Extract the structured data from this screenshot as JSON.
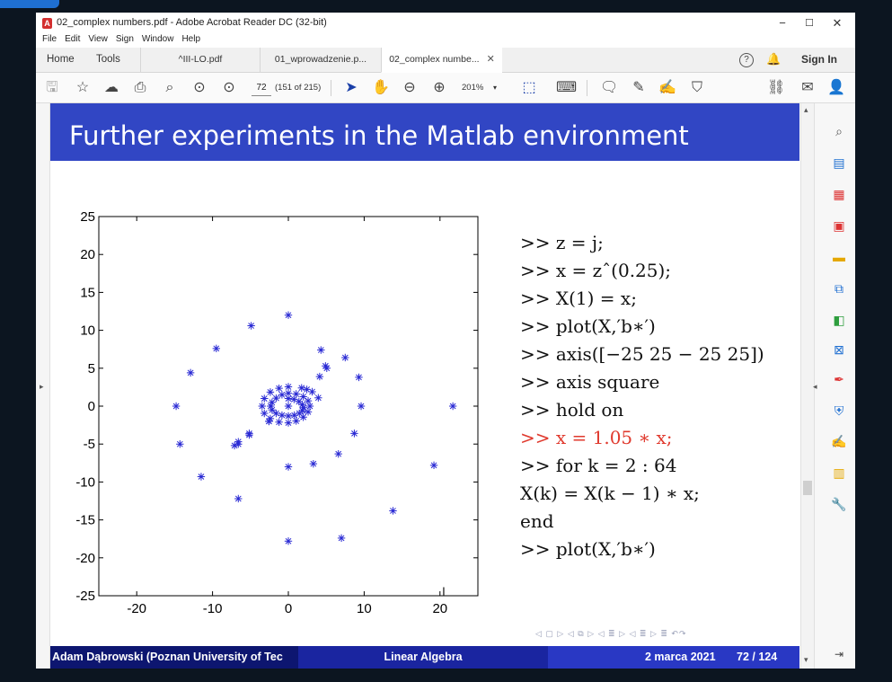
{
  "window": {
    "title": "02_complex numbers.pdf - Adobe Acrobat Reader DC (32-bit)",
    "minimize": "−",
    "maximize": "☐",
    "close": "✕"
  },
  "menu": [
    "File",
    "Edit",
    "View",
    "Sign",
    "Window",
    "Help"
  ],
  "tabs": {
    "home": "Home",
    "tools": "Tools",
    "docs": [
      {
        "label": "^III-LO.pdf",
        "active": false
      },
      {
        "label": "01_wprowadzenie.p...",
        "active": false
      },
      {
        "label": "02_complex numbe...",
        "active": true
      }
    ],
    "close_glyph": "✕",
    "help": "?",
    "sign_in": "Sign In"
  },
  "toolbar": {
    "page_number": "72",
    "page_count": "(151 of 215)",
    "zoom": "201%",
    "icons": [
      "save-icon",
      "bookmark-star-icon",
      "cloud-upload-icon",
      "print-icon",
      "search-icon",
      "page-up-icon",
      "page-down-icon",
      "select-arrow-icon",
      "hand-icon",
      "zoom-out-icon",
      "zoom-in-icon",
      "fit-page-icon",
      "keyboard-icon",
      "comment-icon",
      "highlight-pen-icon",
      "sign-icon",
      "stamp-icon",
      "link-icon",
      "email-icon",
      "share-user-icon"
    ]
  },
  "slide": {
    "title": "Further experiments in the Matlab environment",
    "code_lines": [
      {
        "text": ">> z = j;",
        "red": false
      },
      {
        "text": ">> x = zˆ(0.25);",
        "red": false
      },
      {
        "text": ">> X(1) = x;",
        "red": false
      },
      {
        "text": ">> plot(X,′b∗′)",
        "red": false
      },
      {
        "text": ">> axis([−25 25  − 25 25])",
        "red": false
      },
      {
        "text": ">> axis square",
        "red": false
      },
      {
        "text": ">> hold on",
        "red": false
      },
      {
        "text": ">> x = 1.05 ∗ x;",
        "red": true
      },
      {
        "text": ">> for k = 2 : 64",
        "red": false
      },
      {
        "text": "X(k) = X(k − 1) ∗ x;",
        "red": false
      },
      {
        "text": "end",
        "red": false
      },
      {
        "text": ">> plot(X,′b∗′)",
        "red": false
      }
    ],
    "nav_symbols": "◁ ▢ ▷ ◁ ⧉ ▷ ◁ ≣ ▷ ◁ ≣ ▷   ≣   ↶↷",
    "footer": {
      "author": "Adam Dąbrowski (Poznan University of Tec",
      "course": "Linear Algebra",
      "date": "2 marca 2021",
      "page": "72 / 124"
    }
  },
  "chart_data": {
    "type": "scatter",
    "marker": "*",
    "color": "#2a2ad4",
    "xlim": [
      -25,
      25
    ],
    "ylim": [
      -25,
      25
    ],
    "xticks": [
      -20,
      -10,
      0,
      10,
      20
    ],
    "yticks": [
      25,
      20,
      15,
      10,
      5,
      0,
      -5,
      -10,
      -15,
      -20,
      -25
    ],
    "series": [
      {
        "x": [
          0.0,
          0.75,
          1.4,
          1.83,
          2.0,
          1.87,
          1.45,
          0.79,
          0.0,
          -0.84,
          -1.61,
          -2.15,
          -2.34,
          -2.15,
          -1.61,
          -0.84,
          0.0,
          1.03,
          1.97,
          2.61,
          2.84,
          2.61,
          1.97,
          1.03,
          0.0,
          -1.23,
          -2.38,
          -3.17,
          -3.46,
          -3.17,
          -2.38,
          -1.23,
          0.0,
          1.75,
          3.14,
          3.95,
          4.9,
          5.07,
          4.13,
          2.44,
          0.0,
          -2.56,
          -5.16,
          -6.6,
          -7.1,
          -6.6,
          -5.16,
          -2.56,
          0.0,
          3.3,
          6.6,
          8.7,
          9.6,
          9.3,
          7.5,
          4.3,
          0.0,
          -4.9,
          -9.5,
          -12.9,
          -14.8,
          -14.3,
          -11.5,
          -6.6,
          0.0,
          7.0,
          13.8,
          19.2,
          21.7
        ],
        "y": [
          1.0,
          0.9,
          0.6,
          0.2,
          -0.2,
          -0.6,
          -0.95,
          -1.2,
          -1.3,
          -1.2,
          -0.95,
          -0.5,
          0.0,
          0.5,
          1.05,
          1.5,
          1.7,
          1.6,
          1.25,
          0.7,
          0.0,
          -0.75,
          -1.45,
          -1.95,
          -2.2,
          -2.1,
          -1.65,
          -0.95,
          0.0,
          1.0,
          1.85,
          2.35,
          2.55,
          2.4,
          1.9,
          1.1,
          5.3,
          5.0,
          3.9,
          2.2,
          0.0,
          -2.0,
          -3.6,
          -4.7,
          -5.2,
          -5.0,
          -3.8,
          -2.0,
          -8.0,
          -7.6,
          -6.3,
          -3.6,
          0.0,
          3.8,
          6.4,
          7.4,
          12.0,
          10.6,
          7.6,
          4.4,
          0.0,
          -5.0,
          -9.3,
          -12.2,
          -17.8,
          -17.4,
          -13.8,
          -7.8,
          0.0
        ]
      }
    ]
  }
}
